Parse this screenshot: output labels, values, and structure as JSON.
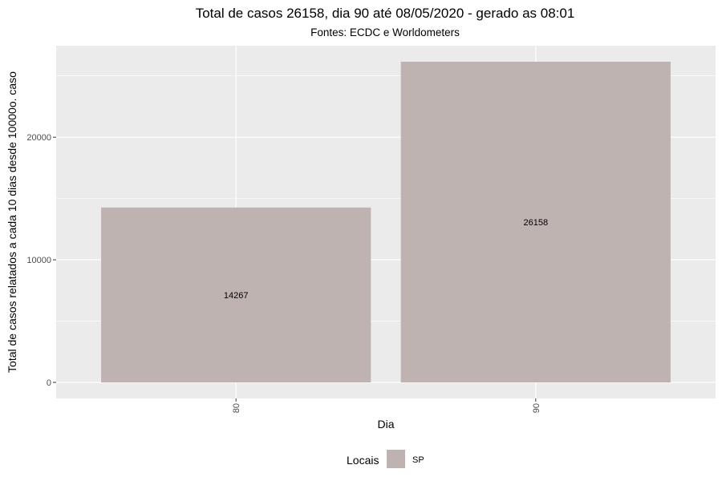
{
  "chart_data": {
    "type": "bar",
    "title": "Total de casos 26158, dia 90 até 08/05/2020 - gerado as 08:01",
    "subtitle": "Fontes: ECDC e Worldometers",
    "xlabel": "Dia",
    "ylabel": "Total de casos relatados a cada 10 dias desde 10000o. caso",
    "categories": [
      "80",
      "90"
    ],
    "series": [
      {
        "name": "SP",
        "values": [
          14267,
          26158
        ],
        "color": "#bfb3b2"
      }
    ],
    "data_labels": [
      "14267",
      "26158"
    ],
    "y_ticks": [
      0,
      10000,
      20000
    ],
    "y_tick_labels": [
      "0",
      "10000",
      "20000"
    ],
    "ylim": [
      -1308,
      27466
    ],
    "grid": true,
    "legend": {
      "title": "Locais",
      "position": "bottom"
    },
    "colors": {
      "panel_background": "#ebebeb",
      "grid_line": "#ffffff",
      "bar_fill": "#bfb3b2"
    }
  }
}
